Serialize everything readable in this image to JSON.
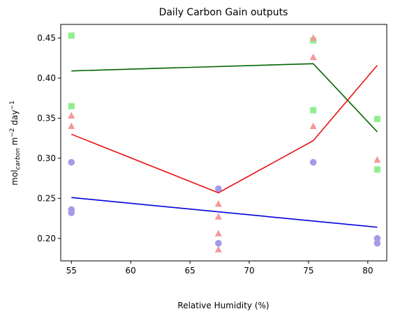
{
  "chart_data": {
    "type": "scatter",
    "title": "Daily Carbon Gain outputs",
    "xlabel": "Relative Humidity (%)",
    "ylabel": {
      "prefix": "mol",
      "subscript": "carbon",
      "middle": " m",
      "sup1": "−2",
      "suffix": " day",
      "sup2": "−1"
    },
    "xlim": [
      54.1,
      81.6
    ],
    "ylim": [
      0.172,
      0.467
    ],
    "xticks": [
      {
        "value": 55,
        "label": "55"
      },
      {
        "value": 60,
        "label": "60"
      },
      {
        "value": 65,
        "label": "65"
      },
      {
        "value": 70,
        "label": "70"
      },
      {
        "value": 75,
        "label": "75"
      },
      {
        "value": 80,
        "label": "80"
      }
    ],
    "yticks": [
      {
        "value": 0.2,
        "label": "0.20"
      },
      {
        "value": 0.25,
        "label": "0.25"
      },
      {
        "value": 0.3,
        "label": "0.30"
      },
      {
        "value": 0.35,
        "label": "0.35"
      },
      {
        "value": 0.4,
        "label": "0.40"
      },
      {
        "value": 0.45,
        "label": "0.45"
      }
    ],
    "grid": false,
    "legend": false,
    "scatter_series": [
      {
        "marker": "square",
        "color": "#90ee90",
        "points": [
          [
            55.0,
            0.453
          ],
          [
            55.0,
            0.365
          ],
          [
            75.4,
            0.447
          ],
          [
            75.4,
            0.36
          ],
          [
            80.8,
            0.349
          ],
          [
            80.8,
            0.286
          ]
        ]
      },
      {
        "marker": "triangle",
        "color": "#f4999a",
        "points": [
          [
            55.0,
            0.353
          ],
          [
            55.0,
            0.34
          ],
          [
            67.4,
            0.243
          ],
          [
            67.4,
            0.227
          ],
          [
            67.4,
            0.206
          ],
          [
            67.4,
            0.186
          ],
          [
            75.4,
            0.45
          ],
          [
            75.4,
            0.426
          ],
          [
            75.4,
            0.34
          ],
          [
            80.8,
            0.298
          ]
        ]
      },
      {
        "marker": "circle",
        "color": "#a49be8",
        "points": [
          [
            55.0,
            0.295
          ],
          [
            55.0,
            0.236
          ],
          [
            55.0,
            0.232
          ],
          [
            67.4,
            0.262
          ],
          [
            67.4,
            0.194
          ],
          [
            75.4,
            0.295
          ],
          [
            80.8,
            0.2
          ],
          [
            80.8,
            0.194
          ]
        ]
      }
    ],
    "line_series": [
      {
        "color": "#006400",
        "x": [
          55.0,
          75.4,
          80.8
        ],
        "y": [
          0.409,
          0.418,
          0.333
        ]
      },
      {
        "color": "#e81010",
        "x": [
          55.0,
          67.4,
          75.4,
          80.8
        ],
        "y": [
          0.33,
          0.257,
          0.322,
          0.416
        ]
      },
      {
        "color": "#0000dd",
        "x": [
          55.0,
          80.8
        ],
        "y": [
          0.251,
          0.214
        ]
      }
    ]
  }
}
